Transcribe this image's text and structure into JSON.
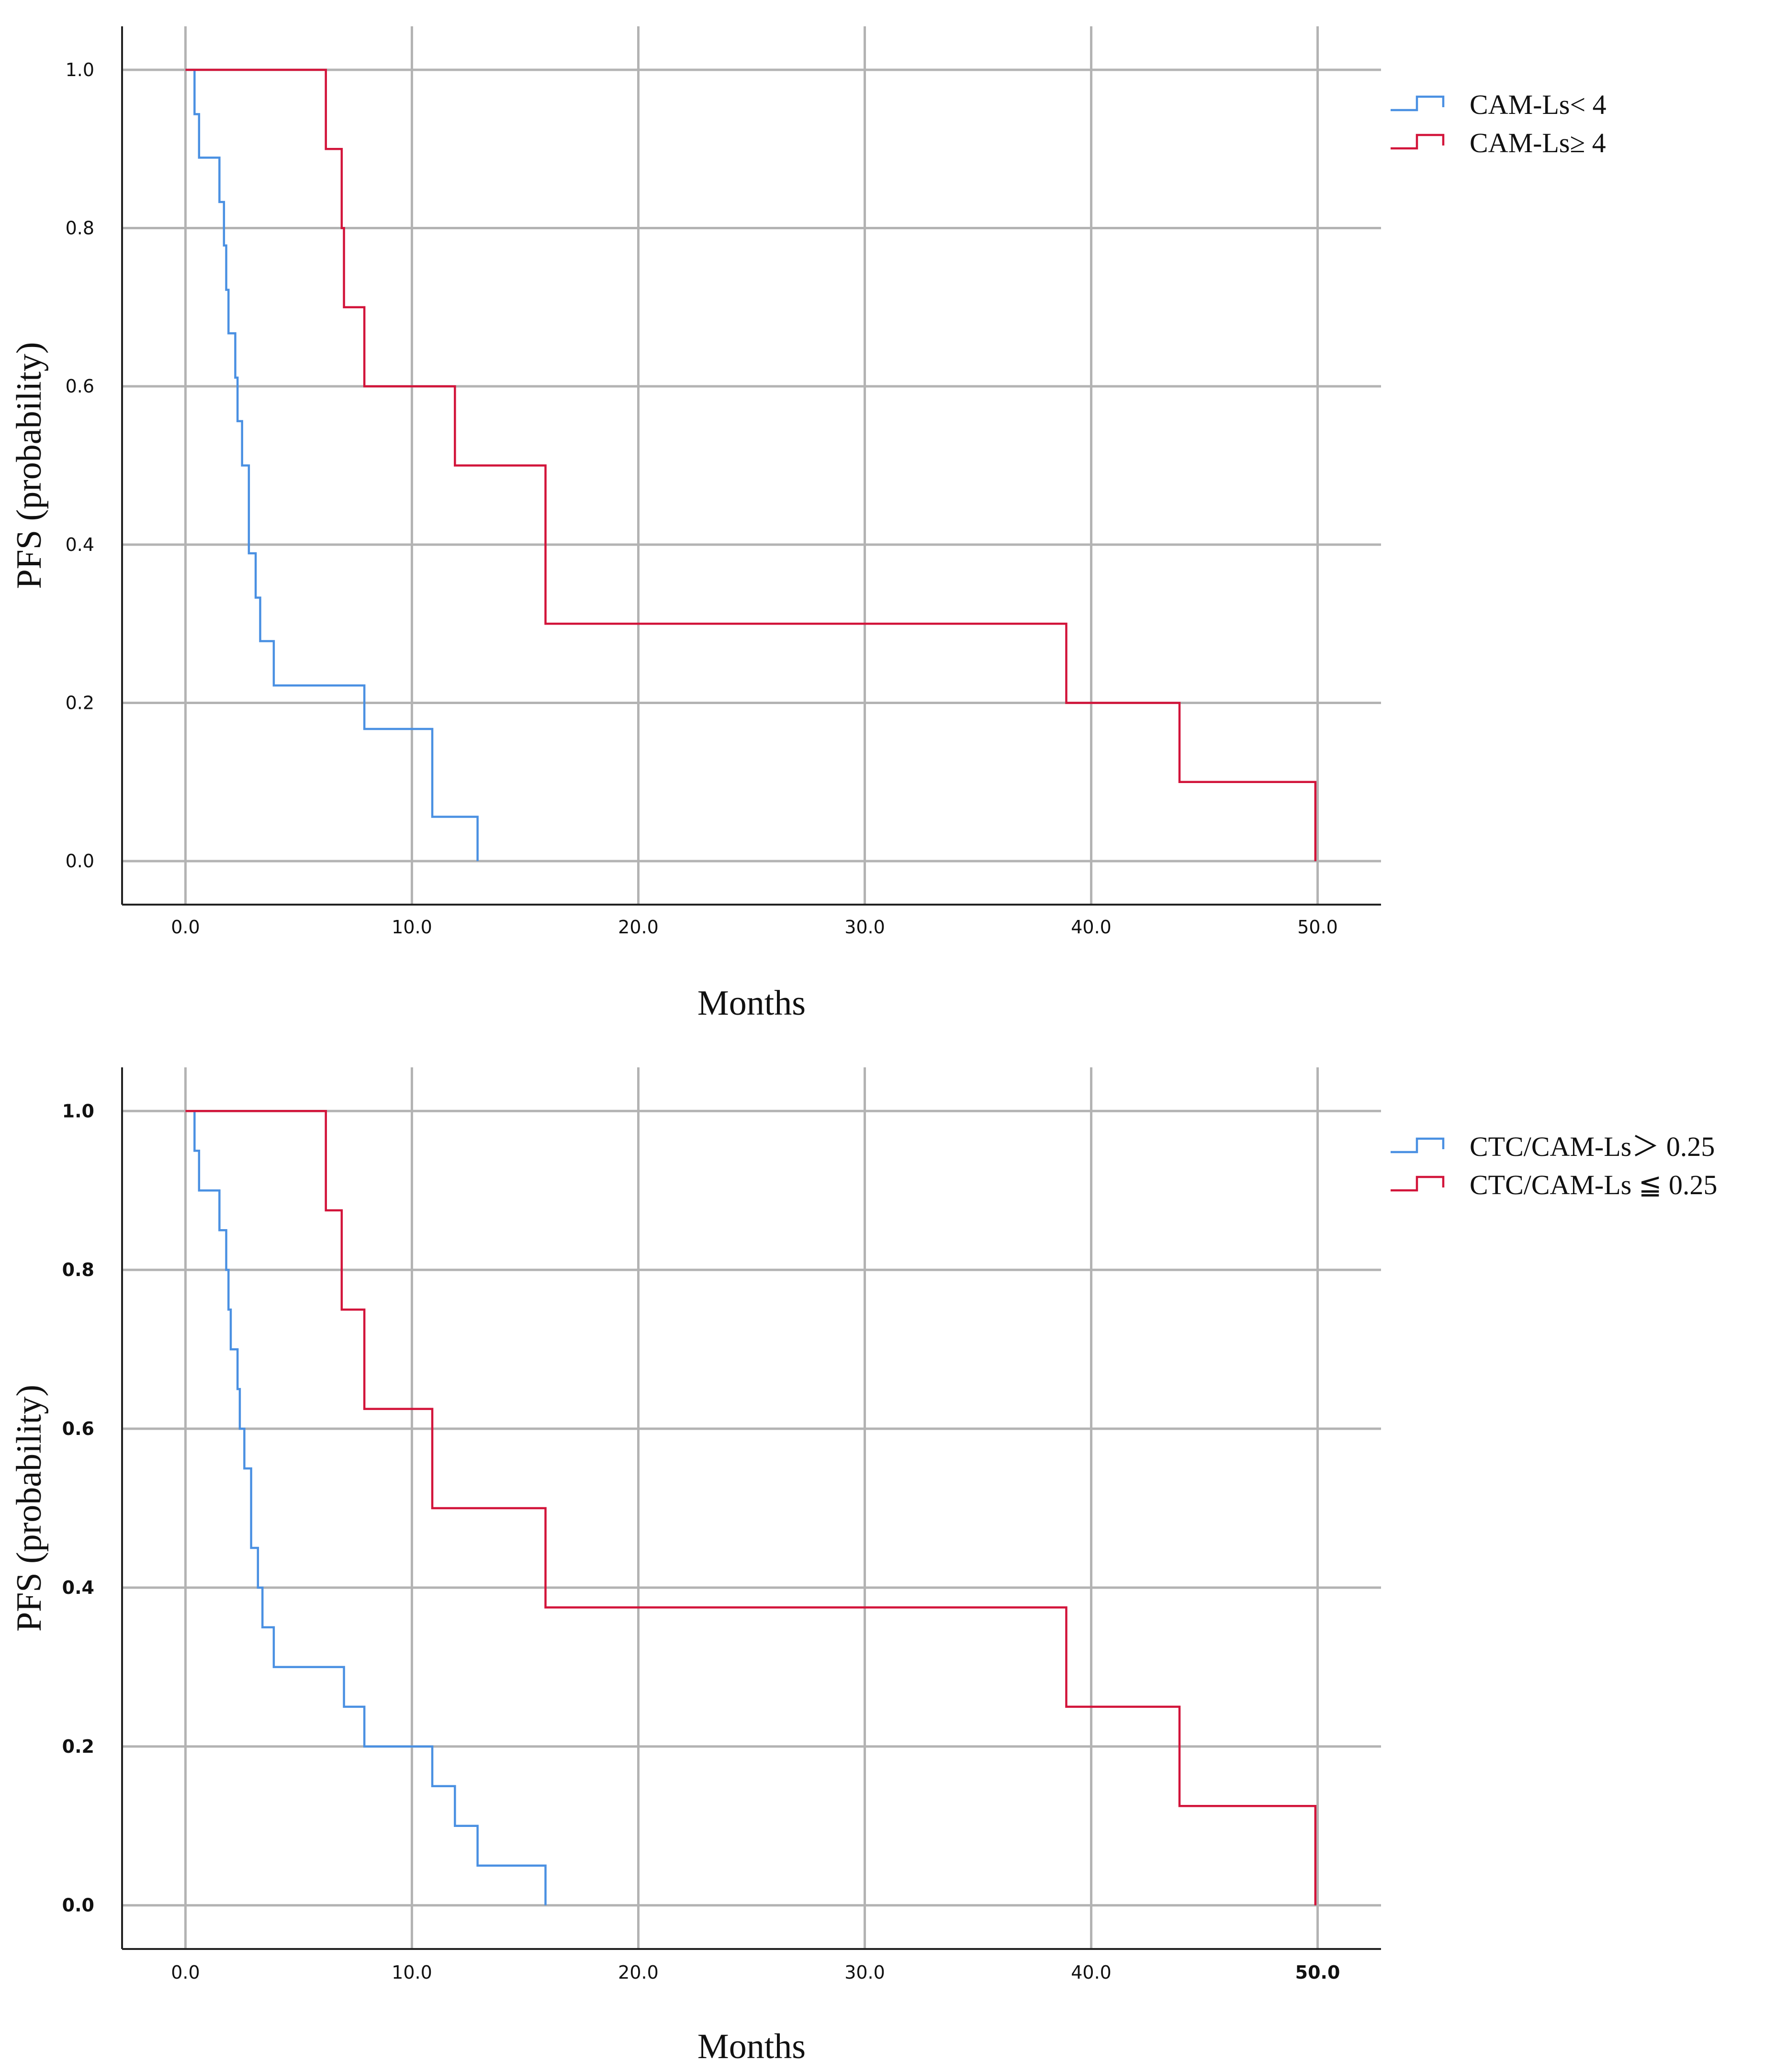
{
  "chart_data": [
    {
      "type": "line",
      "subtype": "kaplan-meier-step",
      "xlabel": "Months",
      "ylabel": "PFS (probability)",
      "xlim": [
        -2.8,
        52.8
      ],
      "ylim": [
        -0.055,
        1.055
      ],
      "x_ticks": [
        "0.0",
        "10.0",
        "20.0",
        "30.0",
        "40.0",
        "50.0"
      ],
      "y_ticks": [
        "0.0",
        "0.2",
        "0.4",
        "0.6",
        "0.8",
        "1.0"
      ],
      "grid": true,
      "legend_position": "top-right, outside plot",
      "series": [
        {
          "name": "CAM-Ls< 4",
          "color": "#4a90e2",
          "points": [
            [
              0,
              1.0
            ],
            [
              0.4,
              0.944
            ],
            [
              0.6,
              0.889
            ],
            [
              1.5,
              0.833
            ],
            [
              1.7,
              0.778
            ],
            [
              1.8,
              0.722
            ],
            [
              1.9,
              0.667
            ],
            [
              2.2,
              0.611
            ],
            [
              2.3,
              0.556
            ],
            [
              2.5,
              0.5
            ],
            [
              2.8,
              0.389
            ],
            [
              3.1,
              0.333
            ],
            [
              3.3,
              0.278
            ],
            [
              3.9,
              0.222
            ],
            [
              7.9,
              0.167
            ],
            [
              10.9,
              0.056
            ],
            [
              12.9,
              0.0
            ]
          ]
        },
        {
          "name": "CAM-Ls≥ 4",
          "color": "#d2143a",
          "points": [
            [
              0,
              1.0
            ],
            [
              6.2,
              0.9
            ],
            [
              6.9,
              0.8
            ],
            [
              7.0,
              0.7
            ],
            [
              7.9,
              0.6
            ],
            [
              11.9,
              0.5
            ],
            [
              15.9,
              0.3
            ],
            [
              38.9,
              0.2
            ],
            [
              43.9,
              0.1
            ],
            [
              49.9,
              0.0
            ]
          ]
        }
      ]
    },
    {
      "type": "line",
      "subtype": "kaplan-meier-step",
      "xlabel": "Months",
      "ylabel": "PFS (probability)",
      "xlim": [
        -2.8,
        52.8
      ],
      "ylim": [
        -0.055,
        1.055
      ],
      "x_ticks": [
        "0.0",
        "10.0",
        "20.0",
        "30.0",
        "40.0",
        "50.0"
      ],
      "y_ticks": [
        "0.0",
        "0.2",
        "0.4",
        "0.6",
        "0.8",
        "1.0"
      ],
      "grid": true,
      "legend_position": "top-right, outside plot",
      "series": [
        {
          "name": "CTC/CAM-Ls＞ 0.25",
          "color": "#4a90e2",
          "points": [
            [
              0,
              1.0
            ],
            [
              0.4,
              0.95
            ],
            [
              0.6,
              0.9
            ],
            [
              1.5,
              0.85
            ],
            [
              1.8,
              0.8
            ],
            [
              1.9,
              0.75
            ],
            [
              2.0,
              0.7
            ],
            [
              2.3,
              0.65
            ],
            [
              2.4,
              0.6
            ],
            [
              2.6,
              0.55
            ],
            [
              2.9,
              0.45
            ],
            [
              3.2,
              0.4
            ],
            [
              3.4,
              0.35
            ],
            [
              3.9,
              0.3
            ],
            [
              7.0,
              0.25
            ],
            [
              7.9,
              0.2
            ],
            [
              10.9,
              0.15
            ],
            [
              11.9,
              0.1
            ],
            [
              12.9,
              0.05
            ],
            [
              15.9,
              0.0
            ]
          ]
        },
        {
          "name": "CTC/CAM-Ls ≦ 0.25",
          "color": "#d2143a",
          "points": [
            [
              0,
              1.0
            ],
            [
              6.2,
              0.875
            ],
            [
              6.9,
              0.75
            ],
            [
              7.9,
              0.625
            ],
            [
              10.9,
              0.5
            ],
            [
              15.9,
              0.375
            ],
            [
              38.9,
              0.25
            ],
            [
              43.9,
              0.125
            ],
            [
              49.9,
              0.0
            ]
          ]
        }
      ]
    }
  ]
}
